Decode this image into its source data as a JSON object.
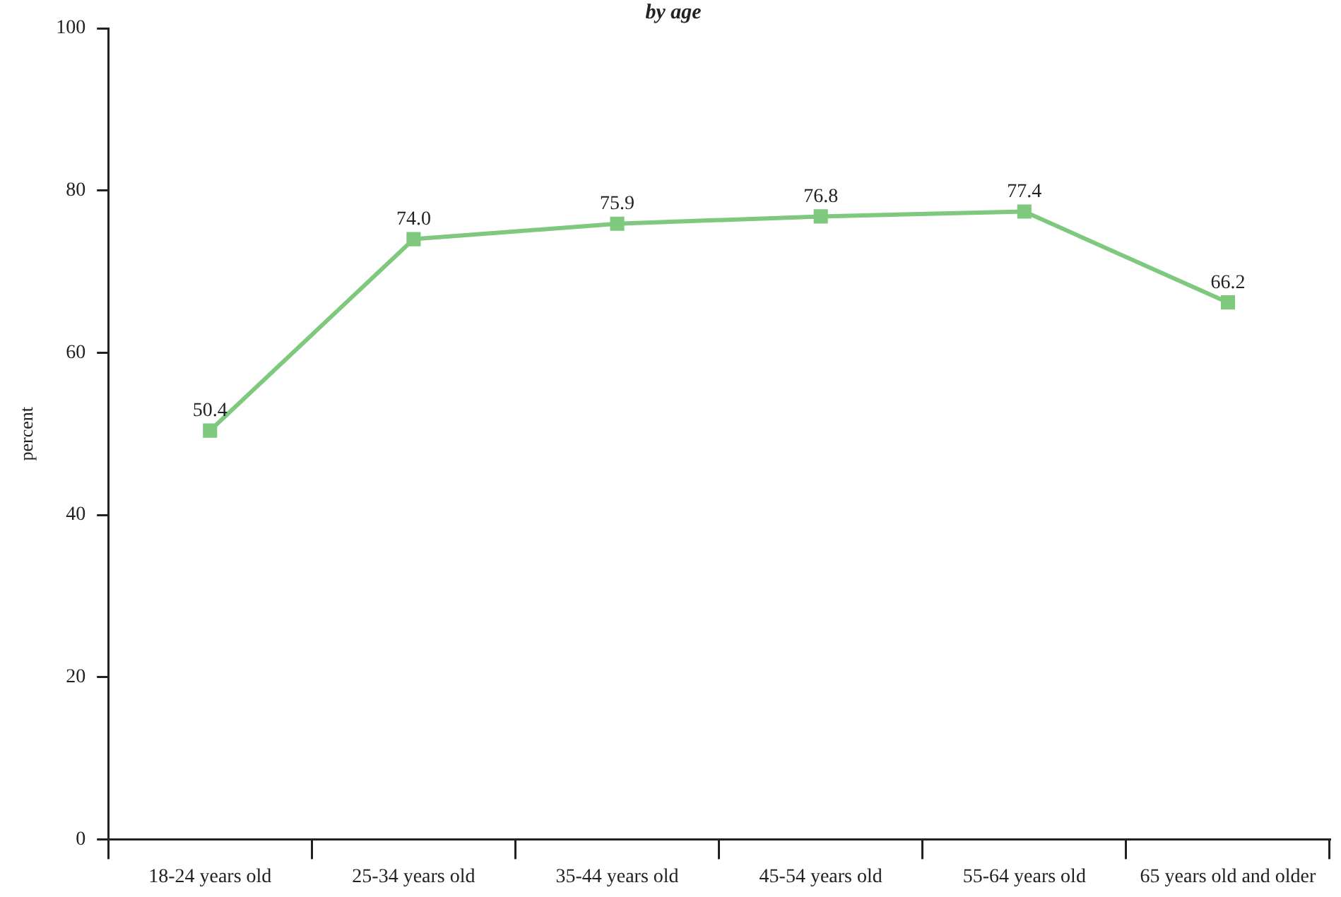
{
  "chart_data": {
    "type": "line",
    "title": "by age",
    "ylabel": "percent",
    "categories": [
      "18-24 years old",
      "25-34 years old",
      "35-44 years old",
      "45-54 years old",
      "55-64 years old",
      "65 years old and older"
    ],
    "series": [
      {
        "color": "#7fc97f",
        "values": [
          50.4,
          74.0,
          75.9,
          76.8,
          77.4,
          66.2
        ],
        "value_labels": [
          "50.4",
          "74.0",
          "75.9",
          "76.8",
          "77.4",
          "66.2"
        ]
      }
    ],
    "ylim": [
      0,
      100
    ],
    "yticks": [
      0,
      20,
      40,
      60,
      80,
      100
    ],
    "grid": false,
    "legend": false,
    "marker": "square",
    "line_style": "solid"
  }
}
